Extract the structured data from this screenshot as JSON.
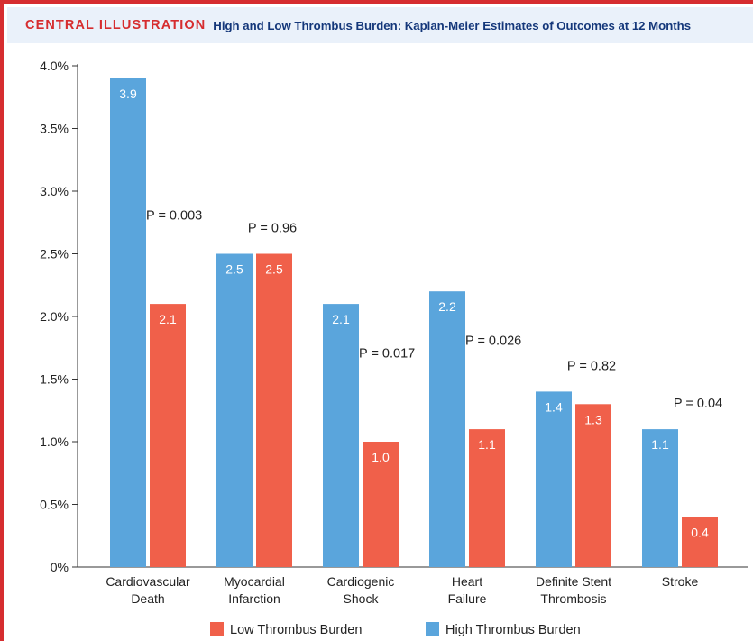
{
  "header": {
    "label": "CENTRAL ILLUSTRATION",
    "title": "High and Low Thrombus Burden: Kaplan-Meier Estimates of Outcomes at 12 Months"
  },
  "chart_data": {
    "type": "bar",
    "title": "High and Low Thrombus Burden: Kaplan-Meier Estimates of Outcomes at 12 Months",
    "xlabel": "",
    "ylabel": "",
    "ylim": [
      0,
      4.0
    ],
    "y_ticks": [
      "0%",
      "0.5%",
      "1.0%",
      "1.5%",
      "2.0%",
      "2.5%",
      "3.0%",
      "3.5%",
      "4.0%"
    ],
    "grid": false,
    "legend_position": "bottom",
    "categories": [
      [
        "Cardiovascular",
        "Death"
      ],
      [
        "Myocardial",
        "Infarction"
      ],
      [
        "Cardiogenic",
        "Shock"
      ],
      [
        "Heart",
        "Failure"
      ],
      [
        "Definite Stent",
        "Thrombosis"
      ],
      [
        "Stroke"
      ]
    ],
    "series": [
      {
        "name": "High Thrombus Burden",
        "color": "#5aa5dc",
        "values": [
          3.9,
          2.5,
          2.1,
          2.2,
          1.4,
          1.1
        ],
        "labels": [
          "3.9",
          "2.5",
          "2.1",
          "2.2",
          "1.4",
          "1.1"
        ]
      },
      {
        "name": "Low Thrombus Burden",
        "color": "#f0604a",
        "values": [
          2.1,
          2.5,
          1.0,
          1.1,
          1.3,
          0.4
        ],
        "labels": [
          "2.1",
          "2.5",
          "1.0",
          "1.1",
          "1.3",
          "0.4"
        ]
      }
    ],
    "p_values": [
      "P = 0.003",
      "P = 0.96",
      "P = 0.017",
      "P = 0.026",
      "P = 0.82",
      "P = 0.04"
    ],
    "legend": [
      {
        "name": "Low Thrombus Burden",
        "color": "#f0604a"
      },
      {
        "name": "High Thrombus Burden",
        "color": "#5aa5dc"
      }
    ]
  }
}
